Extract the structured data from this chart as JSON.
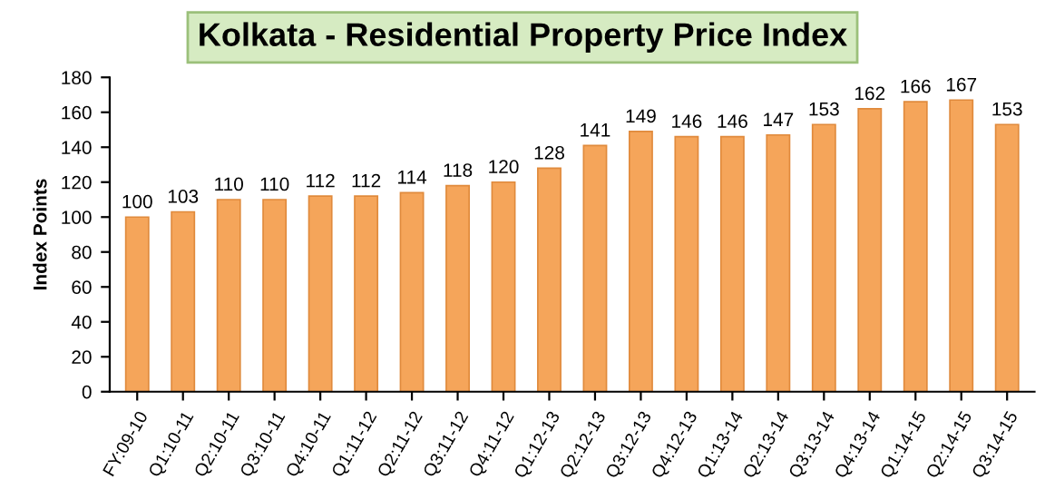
{
  "chart_data": {
    "type": "bar",
    "title": "Kolkata - Residential Property Price Index",
    "ylabel": "Index Points",
    "categories": [
      "FY:09-10",
      "Q1:10-11",
      "Q2:10-11",
      "Q3:10-11",
      "Q4:10-11",
      "Q1:11-12",
      "Q2:11-12",
      "Q3:11-12",
      "Q4:11-12",
      "Q1:12-13",
      "Q2:12-13",
      "Q3:12-13",
      "Q4:12-13",
      "Q1:13-14",
      "Q2:13-14",
      "Q3:13-14",
      "Q4:13-14",
      "Q1:14-15",
      "Q2:14-15",
      "Q3:14-15"
    ],
    "values": [
      100,
      103,
      110,
      110,
      112,
      112,
      114,
      118,
      120,
      128,
      141,
      149,
      146,
      146,
      147,
      153,
      162,
      166,
      167,
      153
    ],
    "color": "#f5a55a",
    "ylim": [
      0,
      180
    ],
    "yticks": [
      0,
      20,
      40,
      60,
      80,
      100,
      120,
      140,
      160,
      180
    ],
    "grid": false,
    "data_labels": true
  }
}
